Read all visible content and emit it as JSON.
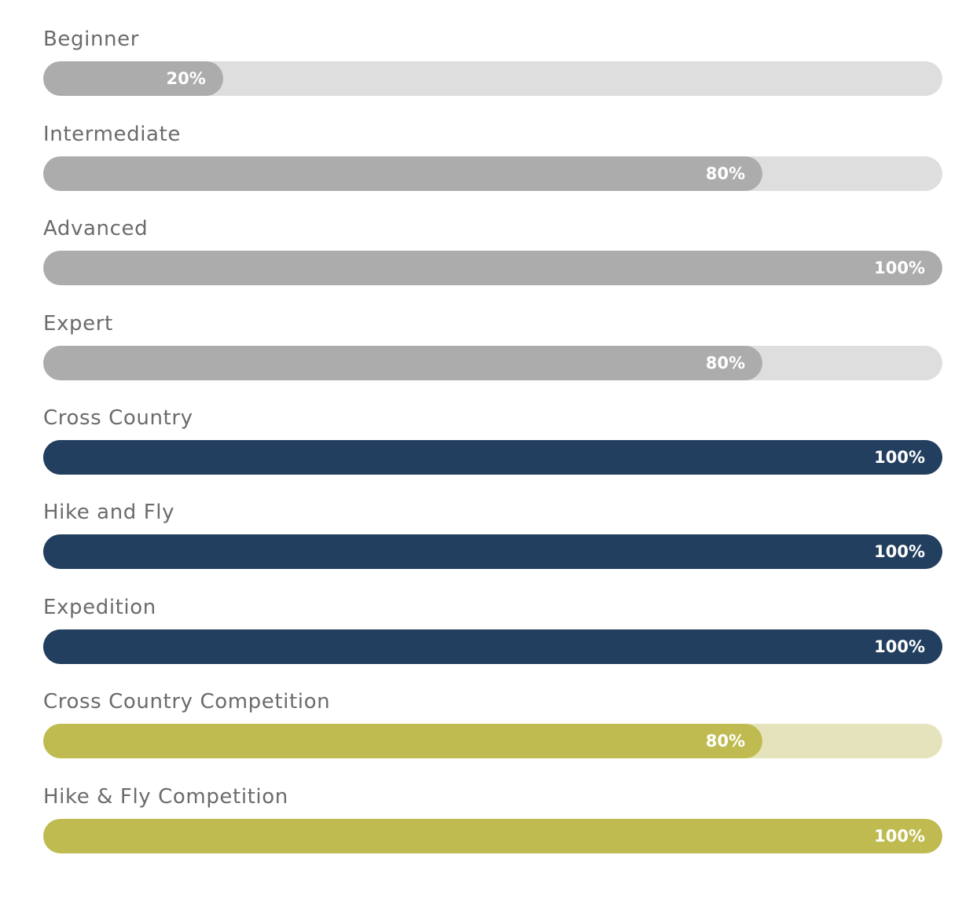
{
  "colors": {
    "grey_fill": "#acacac",
    "grey_track": "#dedede",
    "navy_fill": "#233f5f",
    "navy_track": "#233f5f",
    "olive_fill": "#bfbb50",
    "olive_track": "#e5e3bc"
  },
  "skills": [
    {
      "label": "Beginner",
      "percent": 20,
      "percent_text": "20%",
      "theme": "grey"
    },
    {
      "label": "Intermediate",
      "percent": 80,
      "percent_text": "80%",
      "theme": "grey"
    },
    {
      "label": "Advanced",
      "percent": 100,
      "percent_text": "100%",
      "theme": "grey"
    },
    {
      "label": "Expert",
      "percent": 80,
      "percent_text": "80%",
      "theme": "grey"
    },
    {
      "label": "Cross Country",
      "percent": 100,
      "percent_text": "100%",
      "theme": "navy"
    },
    {
      "label": "Hike and Fly",
      "percent": 100,
      "percent_text": "100%",
      "theme": "navy"
    },
    {
      "label": "Expedition",
      "percent": 100,
      "percent_text": "100%",
      "theme": "navy"
    },
    {
      "label": "Cross Country Competition",
      "percent": 80,
      "percent_text": "80%",
      "theme": "olive"
    },
    {
      "label": "Hike & Fly Competition",
      "percent": 100,
      "percent_text": "100%",
      "theme": "olive"
    }
  ]
}
